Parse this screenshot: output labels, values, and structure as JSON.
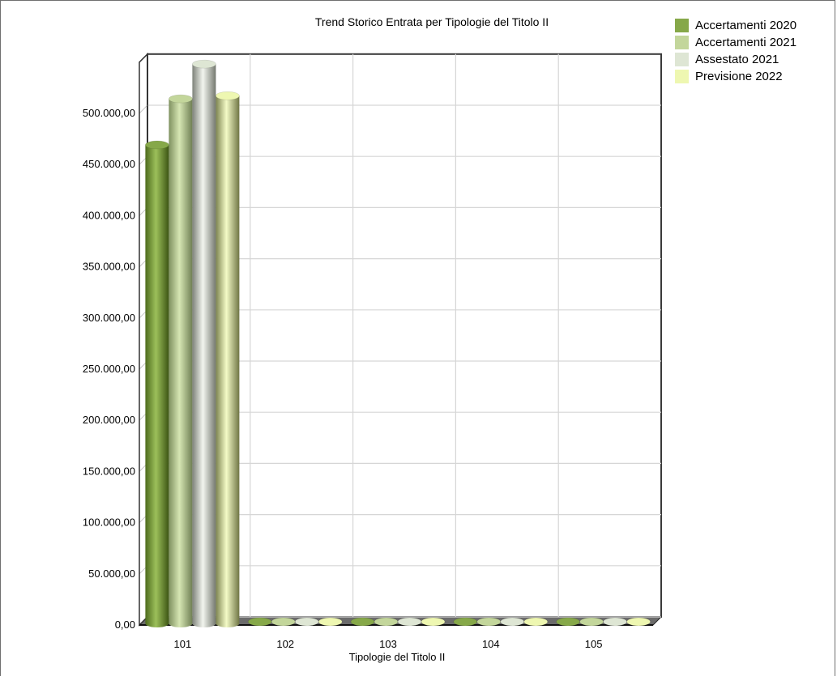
{
  "chart_data": {
    "type": "bar",
    "title": "Trend Storico Entrata per Tipologie del Titolo II",
    "xlabel": "Tipologie del Titolo II",
    "ylabel": "",
    "categories": [
      "101",
      "102",
      "103",
      "104",
      "105"
    ],
    "series": [
      {
        "name": "Accertamenti 2020",
        "color": "#86a849",
        "values": [
          466000,
          0,
          0,
          0,
          0
        ]
      },
      {
        "name": "Accertamenti 2021",
        "color": "#c3d69b",
        "values": [
          511000,
          0,
          0,
          0,
          0
        ]
      },
      {
        "name": "Assestato 2021",
        "color": "#dee6d4",
        "values": [
          545000,
          0,
          0,
          0,
          0
        ]
      },
      {
        "name": "Previsione 2022",
        "color": "#eef7b1",
        "values": [
          514000,
          0,
          0,
          0,
          0
        ]
      }
    ],
    "ylim": [
      0,
      550000
    ],
    "yticks": [
      "0,00",
      "50.000,00",
      "100.000,00",
      "150.000,00",
      "200.000,00",
      "250.000,00",
      "300.000,00",
      "350.000,00",
      "400.000,00",
      "450.000,00",
      "500.000,00"
    ],
    "grid": true,
    "legend_position": "top-right",
    "style": "3d-cylinder"
  }
}
